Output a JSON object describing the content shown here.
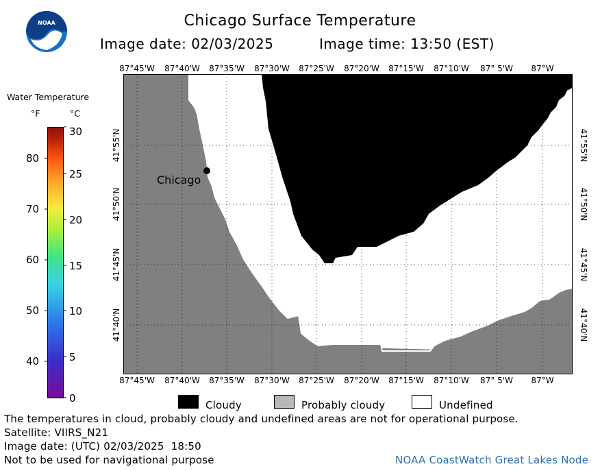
{
  "header": {
    "title": "Chicago Surface Temperature",
    "image_date_label": "Image date: 02/03/2025",
    "image_time_label": "Image time: 13:50 (EST)"
  },
  "colorbar": {
    "title": "Water Temperature",
    "unit_f": "°F",
    "unit_c": "°C",
    "f_ticks": [
      "80",
      "70",
      "60",
      "50",
      "40"
    ],
    "c_ticks": [
      "30",
      "25",
      "20",
      "15",
      "10",
      "5",
      "0"
    ]
  },
  "map": {
    "lon_labels": [
      "87°45'W",
      "87°40'W",
      "87°35'W",
      "87°30'W",
      "87°25'W",
      "87°20'W",
      "87°15'W",
      "87°10'W",
      "87° 5'W",
      "87°W"
    ],
    "lat_labels": [
      "41°55'N",
      "41°50'N",
      "41°45'N",
      "41°40'N"
    ],
    "city_label": "Chicago",
    "colors": {
      "land": "#808080",
      "cloudy": "#000000",
      "undefined": "#ffffff",
      "probably_cloudy": "#b8b8b8"
    }
  },
  "legend": {
    "cloudy": "Cloudy",
    "probably_cloudy": "Probably cloudy",
    "undefined": "Undefined"
  },
  "footer": {
    "disclaimer": "The temperatures in cloud, probably cloudy and undefined areas are not for operational purpose.",
    "satellite": "Satellite: VIIRS_N21",
    "utc_date": "Image date: (UTC) 02/03/2025  18:50",
    "navigation": "Not to be used for navigational purpose",
    "credit": "NOAA CoastWatch Great Lakes Node"
  }
}
